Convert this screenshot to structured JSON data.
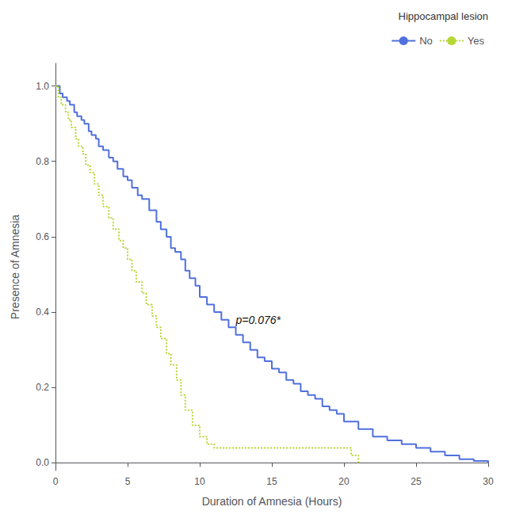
{
  "chart_data": {
    "type": "step",
    "xlabel": "Duration of Amnesia (Hours)",
    "ylabel": "Presence of Amnesia",
    "xlim": [
      0,
      30
    ],
    "ylim": [
      -0.02,
      1.06
    ],
    "xticks": [
      0,
      5,
      10,
      15,
      20,
      25,
      30
    ],
    "yticks": [
      {
        "value": 0.0,
        "label": "0.0"
      },
      0.2,
      0.4,
      0.6,
      0.8,
      {
        "value": 1.0,
        "label": "1.0"
      }
    ],
    "grid": false,
    "legend": "upper right",
    "legend_title": "Hippocampal lesion",
    "annotations": [
      {
        "text": "p=0.076*",
        "x": 12.5,
        "y": 0.38
      }
    ],
    "series": [
      {
        "name": "No",
        "line_style": "solid",
        "x": [
          0,
          0.3,
          0.5,
          0.8,
          1.0,
          1.3,
          1.5,
          1.8,
          2.0,
          2.3,
          2.5,
          2.8,
          3.0,
          3.3,
          3.7,
          4.0,
          4.3,
          4.7,
          5.0,
          5.3,
          5.7,
          6.0,
          6.5,
          7.0,
          7.3,
          7.7,
          8.0,
          8.3,
          8.7,
          9.0,
          9.3,
          9.7,
          10.0,
          10.5,
          11.0,
          11.5,
          12.0,
          12.5,
          13.0,
          13.5,
          14.0,
          14.5,
          15.0,
          15.5,
          16.0,
          16.5,
          17.0,
          17.5,
          18.0,
          18.5,
          19.0,
          19.5,
          20.0,
          21.0,
          22.0,
          23.0,
          24.0,
          25.0,
          26.0,
          27.0,
          28.0,
          29.0,
          30.0
        ],
        "values": [
          1.0,
          0.98,
          0.97,
          0.96,
          0.95,
          0.93,
          0.92,
          0.91,
          0.9,
          0.88,
          0.87,
          0.86,
          0.84,
          0.83,
          0.81,
          0.8,
          0.78,
          0.76,
          0.75,
          0.73,
          0.71,
          0.7,
          0.67,
          0.64,
          0.62,
          0.6,
          0.57,
          0.56,
          0.54,
          0.51,
          0.49,
          0.47,
          0.44,
          0.42,
          0.4,
          0.38,
          0.36,
          0.34,
          0.32,
          0.3,
          0.28,
          0.27,
          0.25,
          0.24,
          0.22,
          0.21,
          0.19,
          0.18,
          0.17,
          0.15,
          0.14,
          0.13,
          0.11,
          0.09,
          0.07,
          0.06,
          0.05,
          0.04,
          0.03,
          0.02,
          0.01,
          0.005,
          0.0
        ]
      },
      {
        "name": "Yes",
        "line_style": "dotted",
        "x": [
          0,
          0.2,
          0.4,
          0.7,
          0.9,
          1.1,
          1.4,
          1.6,
          1.9,
          2.1,
          2.4,
          2.7,
          3.0,
          3.3,
          3.7,
          4.0,
          4.4,
          4.7,
          5.0,
          5.3,
          5.6,
          6.0,
          6.3,
          6.7,
          7.0,
          7.3,
          7.7,
          8.0,
          8.4,
          8.7,
          9.0,
          9.5,
          10.0,
          10.5,
          11.0,
          12.0,
          13.0,
          14.0,
          15.0,
          16.0,
          17.0,
          18.0,
          19.0,
          20.0,
          20.5,
          21.0
        ],
        "values": [
          1.0,
          0.97,
          0.95,
          0.93,
          0.91,
          0.89,
          0.86,
          0.84,
          0.82,
          0.79,
          0.77,
          0.74,
          0.71,
          0.68,
          0.65,
          0.62,
          0.59,
          0.57,
          0.54,
          0.51,
          0.48,
          0.45,
          0.42,
          0.39,
          0.36,
          0.33,
          0.29,
          0.26,
          0.22,
          0.18,
          0.14,
          0.1,
          0.07,
          0.05,
          0.04,
          0.04,
          0.04,
          0.04,
          0.04,
          0.04,
          0.04,
          0.04,
          0.04,
          0.04,
          0.02,
          0.0
        ]
      }
    ]
  }
}
